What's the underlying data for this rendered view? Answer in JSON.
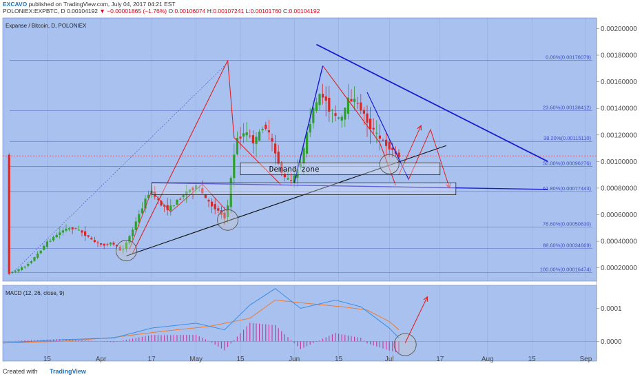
{
  "header": {
    "author": "EXCAVO",
    "published_text": "published on TradingView.com, July 04, 2017 04:21 EST",
    "symbol": "POLONIEX:EXPBTC, D",
    "last": "0.00104192",
    "change": "▼ −0.00001865 (−1.76%)",
    "open_label": "O:",
    "open": "0.00106074",
    "high_label": "H:",
    "high": "0.00107241",
    "low_label": "L:",
    "low": "0.00101760",
    "close_label": "C:",
    "close": "0.00104192"
  },
  "footer": {
    "created_with": "Created with",
    "brand": "TradingView"
  },
  "chart_data": [
    {
      "type": "candlestick",
      "title": "Expanse / Bitcoin, D, POLONIEX",
      "colors": {
        "background": "#a9c1ee",
        "up": "#2ea02e",
        "down": "#d42a2a",
        "grid": "#8aa3da",
        "fib": "#3a4fc8"
      },
      "x_tick_labels": [
        "15",
        "Apr",
        "17",
        "May",
        "15",
        "Jun",
        "15",
        "Jul",
        "17",
        "Aug",
        "15",
        "Sep"
      ],
      "y_tick_labels": [
        "0.00200000",
        "0.00180000",
        "0.00160000",
        "0.00140000",
        "0.00120000",
        "0.00100000",
        "0.00080000",
        "0.00060000",
        "0.00040000",
        "0.00020000"
      ],
      "ylim": [
        0.0001,
        0.00208
      ],
      "fib_levels": [
        {
          "label": "0.00%(0.00176079)",
          "value": 0.00176079
        },
        {
          "label": "23.60%(0.00138412)",
          "value": 0.00138412
        },
        {
          "label": "38.20%(0.00115110)",
          "value": 0.0011511
        },
        {
          "label": "50.00%(0.00096276)",
          "value": 0.00096276
        },
        {
          "label": "61.80%(0.00077443)",
          "value": 0.00077443
        },
        {
          "label": "78.60%(0.00050630)",
          "value": 0.0005063
        },
        {
          "label": "88.60%(0.00034669)",
          "value": 0.00034669
        },
        {
          "label": "100.00%(0.00016474)",
          "value": 0.00016474
        }
      ],
      "current_price": 0.00104192,
      "annotation": "Demand zone",
      "price_path": [
        [
          "Mar 03",
          0.00016
        ],
        [
          "Mar 06",
          0.00018
        ],
        [
          "Mar 09",
          0.00022
        ],
        [
          "Mar 12",
          0.00029
        ],
        [
          "Mar 15",
          0.00038
        ],
        [
          "Mar 18",
          0.00044
        ],
        [
          "Mar 21",
          0.00049
        ],
        [
          "Mar 24",
          0.0005
        ],
        [
          "Mar 27",
          0.00046
        ],
        [
          "Mar 30",
          0.0004
        ],
        [
          "Apr 02",
          0.00037
        ],
        [
          "Apr 05",
          0.00039
        ],
        [
          "Apr 08",
          0.00032
        ],
        [
          "Apr 11",
          0.00046
        ],
        [
          "Apr 14",
          0.00063
        ],
        [
          "Apr 17",
          0.00079
        ],
        [
          "Apr 20",
          0.00068
        ],
        [
          "Apr 23",
          0.00064
        ],
        [
          "Apr 26",
          0.00072
        ],
        [
          "Apr 29",
          0.00078
        ],
        [
          "May 02",
          0.00082
        ],
        [
          "May 05",
          0.0007
        ],
        [
          "May 08",
          0.00064
        ],
        [
          "May 11",
          0.00057
        ],
        [
          "May 14",
          0.00116
        ],
        [
          "May 17",
          0.00122
        ],
        [
          "May 20",
          0.00114
        ],
        [
          "May 23",
          0.00129
        ],
        [
          "May 26",
          0.0011
        ],
        [
          "May 29",
          0.00088
        ],
        [
          "Jun 01",
          0.00085
        ],
        [
          "Jun 04",
          0.00103
        ],
        [
          "Jun 07",
          0.00136
        ],
        [
          "Jun 10",
          0.00152
        ],
        [
          "Jun 13",
          0.00138
        ],
        [
          "Jun 16",
          0.0013
        ],
        [
          "Jun 19",
          0.00148
        ],
        [
          "Jun 22",
          0.00142
        ],
        [
          "Jun 25",
          0.00128
        ],
        [
          "Jun 28",
          0.00118
        ],
        [
          "Jul 01",
          0.00112
        ],
        [
          "Jul 04",
          0.00104192
        ]
      ]
    },
    {
      "type": "line",
      "title": "MACD (12, 26, close, 9)",
      "y_tick_labels": [
        "0.0001",
        "0.0000"
      ],
      "ylim": [
        -6e-05,
        0.00017
      ],
      "series_colors": {
        "macd": "#3a8ee6",
        "signal": "#f07a2e",
        "histogram": "#c4359a"
      }
    }
  ]
}
